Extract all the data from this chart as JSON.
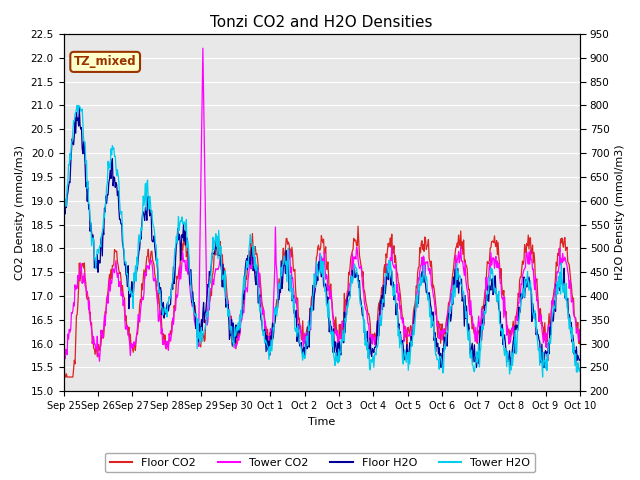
{
  "title": "Tonzi CO2 and H2O Densities",
  "xlabel": "Time",
  "ylabel_left": "CO2 Density (mmol/m3)",
  "ylabel_right": "H2O Density (mmol/m3)",
  "ylim_left": [
    15.0,
    22.5
  ],
  "ylim_right": [
    200,
    950
  ],
  "annotation_text": "TZ_mixed",
  "annotation_bg": "#ffffcc",
  "annotation_edge": "#993300",
  "xtick_labels": [
    "Sep 25",
    "Sep 26",
    "Sep 27",
    "Sep 28",
    "Sep 29",
    "Sep 30",
    "Oct 1",
    "Oct 2",
    "Oct 3",
    "Oct 4",
    "Oct 5",
    "Oct 6",
    "Oct 7",
    "Oct 8",
    "Oct 9",
    "Oct 10"
  ],
  "colors": {
    "floor_co2": "#dd2222",
    "tower_co2": "#ff00ff",
    "floor_h2o": "#000099",
    "tower_h2o": "#00ccee"
  },
  "legend_labels": [
    "Floor CO2",
    "Tower CO2",
    "Floor H2O",
    "Tower H2O"
  ],
  "plot_bg": "#e8e8e8",
  "fig_bg": "#ffffff",
  "grid_color": "#ffffff",
  "title_fontsize": 11,
  "n_days": 15,
  "n_per_day": 48
}
